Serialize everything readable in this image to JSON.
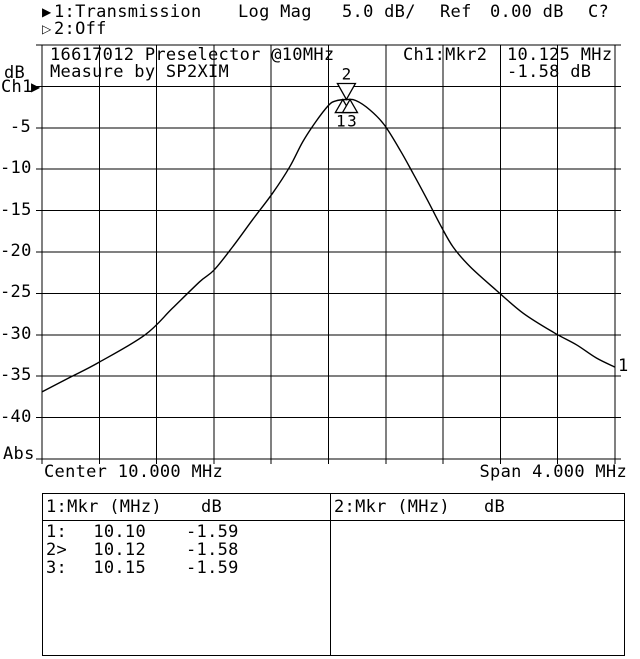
{
  "header": {
    "ch1_marker": "▶",
    "ch1_label": "1:Transmission",
    "format": "Log Mag",
    "scale": "5.0 dB/",
    "ref_label": "Ref",
    "ref_value": "0.00 dB",
    "cal_status": "C?",
    "ch2_marker": "▷",
    "ch2_label": "2:Off"
  },
  "plot": {
    "annotation_line1": "16617012 Preselector @10MHz",
    "annotation_line2": "Measure by SP2XIM",
    "readout_channel": "Ch1:Mkr2",
    "readout_freq": "10.125 MHz",
    "readout_level": "-1.58 dB",
    "y_axis_unit": "dB",
    "y_axis_channel": "Ch1",
    "y_axis_ref_arrow": "▶",
    "y_axis_bottom": "Abs",
    "trace_number_label": "1",
    "center_label": "Center 10.000 MHz",
    "span_label": "Span 4.000 MHz"
  },
  "chart_data": {
    "type": "line",
    "title": "Ch1 Transmission, Log Mag, bandpass response of 16617012 Preselector @10MHz",
    "x_axis": {
      "label": "Frequency (MHz)",
      "center_mhz": 10.0,
      "span_mhz": 4.0,
      "min": 8.0,
      "max": 12.0,
      "divisions": 10
    },
    "y_axis": {
      "label": "dB",
      "ref_db": 0.0,
      "db_per_div": 5.0,
      "min": -45,
      "max": 5,
      "divisions": 10,
      "tick_labels": [
        "-5",
        "-10",
        "-15",
        "-20",
        "-25",
        "-30",
        "-35",
        "-40"
      ]
    },
    "grid": true,
    "trace": [
      [
        8.0,
        -36.9
      ],
      [
        8.2,
        -35.1
      ],
      [
        8.4,
        -33.3
      ],
      [
        8.72,
        -30.0
      ],
      [
        8.91,
        -26.8
      ],
      [
        9.1,
        -23.6
      ],
      [
        9.2,
        -22.2
      ],
      [
        9.33,
        -19.4
      ],
      [
        9.47,
        -16.1
      ],
      [
        9.61,
        -12.9
      ],
      [
        9.73,
        -9.7
      ],
      [
        9.82,
        -6.7
      ],
      [
        9.91,
        -4.3
      ],
      [
        10.0,
        -2.3
      ],
      [
        10.05,
        -1.75
      ],
      [
        10.125,
        -1.58
      ],
      [
        10.19,
        -1.7
      ],
      [
        10.29,
        -2.85
      ],
      [
        10.39,
        -4.66
      ],
      [
        10.5,
        -7.7
      ],
      [
        10.59,
        -10.5
      ],
      [
        10.69,
        -13.7
      ],
      [
        10.78,
        -16.7
      ],
      [
        10.87,
        -19.4
      ],
      [
        10.99,
        -21.8
      ],
      [
        11.17,
        -24.6
      ],
      [
        11.36,
        -27.4
      ],
      [
        11.57,
        -29.7
      ],
      [
        11.73,
        -31.2
      ],
      [
        11.87,
        -32.8
      ],
      [
        12.0,
        -33.9
      ]
    ],
    "markers": [
      {
        "number": "1",
        "freq_mhz": 10.1,
        "db": -1.59,
        "shape": "up"
      },
      {
        "number": "2",
        "freq_mhz": 10.125,
        "db": -1.58,
        "shape": "down"
      },
      {
        "number": "3",
        "freq_mhz": 10.15,
        "db": -1.59,
        "shape": "up"
      }
    ]
  },
  "marker_table": {
    "left": {
      "header_title": "1:Mkr (MHz)",
      "header_unit": "dB",
      "rows": [
        {
          "label": "1:",
          "freq": "10.10",
          "db": "-1.59"
        },
        {
          "label": "2>",
          "freq": "10.12",
          "db": "-1.58"
        },
        {
          "label": "3:",
          "freq": "10.15",
          "db": "-1.59"
        }
      ]
    },
    "right": {
      "header_title": "2:Mkr (MHz)",
      "header_unit": "dB",
      "rows": []
    }
  }
}
